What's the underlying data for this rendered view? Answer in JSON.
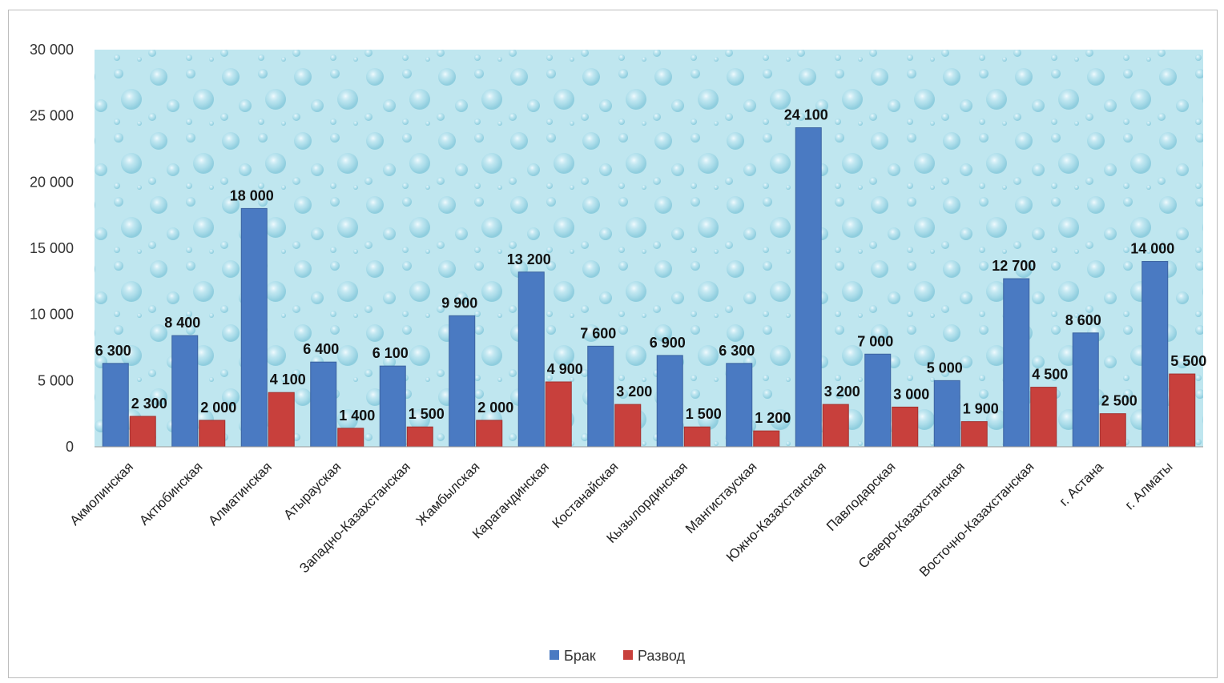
{
  "chart_data": {
    "type": "bar",
    "categories": [
      "Акмолинская",
      "Актюбинская",
      "Алматинская",
      "Атырауская",
      "Западно-Казахстанская",
      "Жамбылская",
      "Карагандинская",
      "Костанайская",
      "Кызылординская",
      "Мангистауская",
      "Южно-Казахстанская",
      "Павлодарская",
      "Северо-Казахстанская",
      "Восточно-Казахстанская",
      "г. Астана",
      "г. Алматы"
    ],
    "series": [
      {
        "name": "Брак",
        "color": "#4a7ac2",
        "values": [
          6300,
          8400,
          18000,
          6400,
          6100,
          9900,
          13200,
          7600,
          6900,
          6300,
          24100,
          7000,
          5000,
          12700,
          8600,
          14000
        ],
        "labels": [
          "6 300",
          "8 400",
          "18 000",
          "6 400",
          "6 100",
          "9 900",
          "13 200",
          "7 600",
          "6 900",
          "6 300",
          "24 100",
          "7 000",
          "5 000",
          "12 700",
          "8 600",
          "14 000"
        ]
      },
      {
        "name": "Развод",
        "color": "#c8403c",
        "values": [
          2300,
          2000,
          4100,
          1400,
          1500,
          2000,
          4900,
          3200,
          1500,
          1200,
          3200,
          3000,
          1900,
          4500,
          2500,
          5500
        ],
        "labels": [
          "2 300",
          "2 000",
          "4 100",
          "1 400",
          "1 500",
          "2 000",
          "4 900",
          "3 200",
          "1 500",
          "1 200",
          "3 200",
          "3 000",
          "1 900",
          "4 500",
          "2 500",
          "5 500"
        ]
      }
    ],
    "ylim": [
      0,
      30000
    ],
    "yticks": [
      0,
      5000,
      10000,
      15000,
      20000,
      25000,
      30000
    ],
    "ytick_labels": [
      "0",
      "5 000",
      "10 000",
      "15 000",
      "20 000",
      "25 000",
      "30 000"
    ],
    "legend": "bottom-center",
    "plot_background": "#bfe6ef",
    "grid": false
  }
}
